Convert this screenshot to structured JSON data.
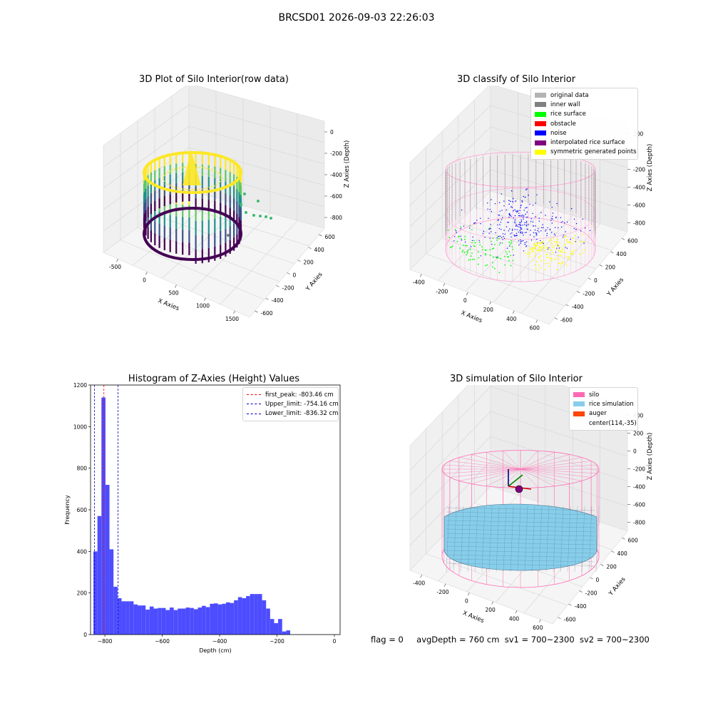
{
  "suptitle": "BRCSD01 2026-09-03 22:26:03",
  "status": {
    "flag": "flag = 0",
    "avg": "avgDepth = 760 cm",
    "sv1": "sv1 = 700~2300",
    "sv2": "sv2 = 700~2300"
  },
  "chart_data": [
    {
      "type": "scatter",
      "title": "3D Plot of Silo Interior(row data)",
      "xlabel": "X Axies",
      "ylabel": "Y Axies",
      "zlabel": "Z Axies (Depth)",
      "x_ticks": [
        "-500",
        "0",
        "500",
        "1000",
        "1500"
      ],
      "y_ticks": [
        "600",
        "400",
        "200",
        "0",
        "-200",
        "-400",
        "-600"
      ],
      "z_ticks": [
        "0",
        "-200",
        "-400",
        "-600",
        "-800"
      ],
      "colormap": [
        "#440154",
        "#3b528b",
        "#21918c",
        "#5ec962",
        "#fde725"
      ],
      "outlier_color": "#3dbb72"
    },
    {
      "type": "scatter",
      "title": "3D classify of Silo Interior",
      "xlabel": "X Axies",
      "ylabel": "Y Axies",
      "zlabel": "Z Axies (Depth)",
      "x_ticks": [
        "-400",
        "-200",
        "0",
        "200",
        "400",
        "600"
      ],
      "y_ticks": [
        "600",
        "400",
        "200",
        "0",
        "-200",
        "-400",
        "-600"
      ],
      "z_ticks": [
        "200",
        "0",
        "-200",
        "-400",
        "-600",
        "-800"
      ],
      "legend": [
        {
          "name": "original data",
          "color": "#b3b3b3"
        },
        {
          "name": "inner wall",
          "color": "#808080"
        },
        {
          "name": "rice surface",
          "color": "#00ff00"
        },
        {
          "name": "obstacle",
          "color": "#ff0000"
        },
        {
          "name": "noise",
          "color": "#0000ff"
        },
        {
          "name": "interpolated rice surface",
          "color": "#800080"
        },
        {
          "name": "symmetric generated points",
          "color": "#ffff00"
        }
      ],
      "silo_color": "#ff9ccf"
    },
    {
      "type": "bar",
      "title": "Histogram of Z-Axies (Height) Values",
      "xlabel": "Depth (cm)",
      "ylabel": "Frequency",
      "xlim": [
        -850,
        20
      ],
      "ylim": [
        0,
        1200
      ],
      "x_ticks": [
        -800,
        -600,
        -400,
        -200,
        0
      ],
      "y_ticks": [
        0,
        200,
        400,
        600,
        800,
        1000,
        1200
      ],
      "bin_start": -840,
      "bin_width": 14,
      "values": [
        400,
        570,
        1140,
        720,
        410,
        230,
        175,
        160,
        160,
        160,
        145,
        140,
        140,
        120,
        135,
        125,
        128,
        128,
        118,
        130,
        118,
        125,
        125,
        130,
        128,
        122,
        130,
        138,
        132,
        148,
        150,
        145,
        148,
        155,
        152,
        165,
        180,
        175,
        185,
        195,
        195,
        195,
        165,
        125,
        75,
        55,
        75,
        15,
        20
      ],
      "bar_color": "#4d4dff",
      "lines": [
        {
          "label": "first_peak: -803.46 cm",
          "value": -803.46,
          "color": "#ff0000"
        },
        {
          "label": "Upper_limit: -754.16 cm",
          "value": -754.16,
          "color": "#0000cc"
        },
        {
          "label": "Lower_limit: -836.32 cm",
          "value": -836.32,
          "color": "#0000cc"
        }
      ]
    },
    {
      "type": "scatter",
      "title": "3D simulation of Silo Interior",
      "xlabel": "X Axies",
      "ylabel": "Y Axies",
      "zlabel": "Z Axies (Depth)",
      "x_ticks": [
        "-400",
        "-200",
        "0",
        "200",
        "400",
        "600"
      ],
      "y_ticks": [
        "600",
        "400",
        "200",
        "0",
        "-200",
        "-400",
        "-600"
      ],
      "z_ticks": [
        "400",
        "200",
        "0",
        "-200",
        "-400",
        "-600",
        "-800"
      ],
      "legend": [
        {
          "name": "silo",
          "color": "#ff69b4"
        },
        {
          "name": "rice simulation",
          "color": "#87ceeb"
        },
        {
          "name": "auger",
          "color": "#ff4500"
        },
        {
          "name": "center(114,-35)",
          "color": "transparent"
        }
      ]
    }
  ]
}
